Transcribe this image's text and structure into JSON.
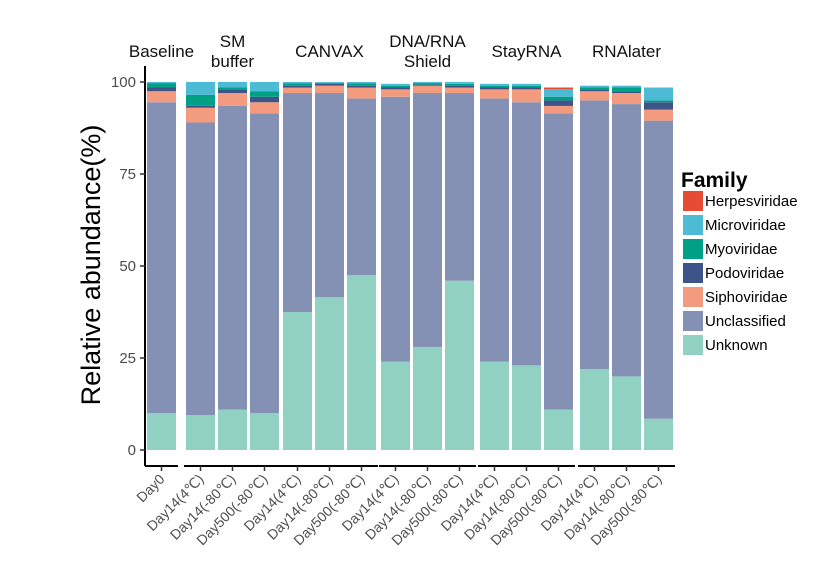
{
  "chart_data": {
    "type": "bar",
    "stacked": true,
    "ylabel": "Relative abundance(%)",
    "xlabel": "",
    "ylim": [
      0,
      100
    ],
    "yticks": [
      0,
      25,
      50,
      75,
      100
    ],
    "legend_title": "Family",
    "legend_position": "right",
    "families": [
      {
        "name": "Herpesviridae",
        "color": "#E64B35"
      },
      {
        "name": "Microviridae",
        "color": "#4DBBD5"
      },
      {
        "name": "Myoviridae",
        "color": "#00A087"
      },
      {
        "name": "Podoviridae",
        "color": "#3C5488"
      },
      {
        "name": "Siphoviridae",
        "color": "#F39B7F"
      },
      {
        "name": "Unclassified",
        "color": "#8491B4"
      },
      {
        "name": "Unknown",
        "color": "#91D1C2"
      }
    ],
    "stack_order_bottom_to_top": [
      "Unknown",
      "Unclassified",
      "Siphoviridae",
      "Podoviridae",
      "Myoviridae",
      "Microviridae",
      "Herpesviridae"
    ],
    "facets": [
      {
        "title": [
          "Baseline"
        ],
        "bars": [
          {
            "label": "Day0",
            "values": {
              "Unknown": 10,
              "Unclassified": 84.5,
              "Siphoviridae": 3,
              "Podoviridae": 1,
              "Myoviridae": 1.2,
              "Microviridae": 0.3,
              "Herpesviridae": 0
            }
          }
        ]
      },
      {
        "title": [
          "SM",
          "buffer"
        ],
        "bars": [
          {
            "label": "Day14(4℃)",
            "values": {
              "Unknown": 9.5,
              "Unclassified": 79.5,
              "Siphoviridae": 4,
              "Podoviridae": 0.5,
              "Myoviridae": 3,
              "Microviridae": 3.5,
              "Herpesviridae": 0
            }
          },
          {
            "label": "Day14(-80℃)",
            "values": {
              "Unknown": 11,
              "Unclassified": 82.5,
              "Siphoviridae": 3.5,
              "Podoviridae": 1,
              "Myoviridae": 0.5,
              "Microviridae": 1.5,
              "Herpesviridae": 0
            }
          },
          {
            "label": "Day500(-80℃)",
            "values": {
              "Unknown": 10,
              "Unclassified": 81.5,
              "Siphoviridae": 3,
              "Podoviridae": 1.5,
              "Myoviridae": 1.5,
              "Microviridae": 2.5,
              "Herpesviridae": 0
            }
          }
        ]
      },
      {
        "title": [
          "CANVAX"
        ],
        "bars": [
          {
            "label": "Day14(4℃)",
            "values": {
              "Unknown": 37.5,
              "Unclassified": 59.5,
              "Siphoviridae": 1.5,
              "Podoviridae": 0.5,
              "Myoviridae": 0.6,
              "Microviridae": 0.4,
              "Herpesviridae": 0
            }
          },
          {
            "label": "Day14(-80℃)",
            "values": {
              "Unknown": 41.5,
              "Unclassified": 55.5,
              "Siphoviridae": 2,
              "Podoviridae": 0.5,
              "Myoviridae": 0.3,
              "Microviridae": 0.2,
              "Herpesviridae": 0
            }
          },
          {
            "label": "Day500(-80℃)",
            "values": {
              "Unknown": 47.5,
              "Unclassified": 48,
              "Siphoviridae": 3,
              "Podoviridae": 0.5,
              "Myoviridae": 0.6,
              "Microviridae": 0.4,
              "Herpesviridae": 0
            }
          }
        ]
      },
      {
        "title": [
          "DNA/RNA",
          "Shield"
        ],
        "bars": [
          {
            "label": "Day14(4℃)",
            "values": {
              "Unknown": 24,
              "Unclassified": 72,
              "Siphoviridae": 2,
              "Podoviridae": 0.5,
              "Myoviridae": 0.5,
              "Microviridae": 0.5,
              "Herpesviridae": 0
            }
          },
          {
            "label": "Day14(-80℃)",
            "values": {
              "Unknown": 28,
              "Unclassified": 69,
              "Siphoviridae": 2,
              "Podoviridae": 0.3,
              "Myoviridae": 0.4,
              "Microviridae": 0.3,
              "Herpesviridae": 0
            }
          },
          {
            "label": "Day500(-80℃)",
            "values": {
              "Unknown": 46,
              "Unclassified": 51,
              "Siphoviridae": 1.5,
              "Podoviridae": 0.5,
              "Myoviridae": 0.5,
              "Microviridae": 0.5,
              "Herpesviridae": 0
            }
          }
        ]
      },
      {
        "title": [
          "StayRNA"
        ],
        "bars": [
          {
            "label": "Day14(4℃)",
            "values": {
              "Unknown": 24,
              "Unclassified": 71.5,
              "Siphoviridae": 2.5,
              "Podoviridae": 0.5,
              "Myoviridae": 0.5,
              "Microviridae": 0.5,
              "Herpesviridae": 0
            }
          },
          {
            "label": "Day14(-80℃)",
            "values": {
              "Unknown": 23,
              "Unclassified": 71.5,
              "Siphoviridae": 3.5,
              "Podoviridae": 0.5,
              "Myoviridae": 0.5,
              "Microviridae": 0.5,
              "Herpesviridae": 0
            }
          },
          {
            "label": "Day500(-80℃)",
            "values": {
              "Unknown": 11,
              "Unclassified": 80.5,
              "Siphoviridae": 2,
              "Podoviridae": 1.5,
              "Myoviridae": 1,
              "Microviridae": 2,
              "Herpesviridae": 0.5
            }
          }
        ]
      },
      {
        "title": [
          "RNAlater"
        ],
        "bars": [
          {
            "label": "Day14(4℃)",
            "values": {
              "Unknown": 22,
              "Unclassified": 73,
              "Siphoviridae": 2.5,
              "Podoviridae": 0.5,
              "Myoviridae": 0.5,
              "Microviridae": 0.5,
              "Herpesviridae": 0
            }
          },
          {
            "label": "Day14(-80℃)",
            "values": {
              "Unknown": 20,
              "Unclassified": 74,
              "Siphoviridae": 3,
              "Podoviridae": 0.5,
              "Myoviridae": 1,
              "Microviridae": 0.5,
              "Herpesviridae": 0
            }
          },
          {
            "label": "Day500(-80℃)",
            "values": {
              "Unknown": 8.5,
              "Unclassified": 81,
              "Siphoviridae": 3,
              "Podoviridae": 2,
              "Myoviridae": 0.5,
              "Microviridae": 3.5,
              "Herpesviridae": 0
            }
          }
        ]
      }
    ]
  }
}
